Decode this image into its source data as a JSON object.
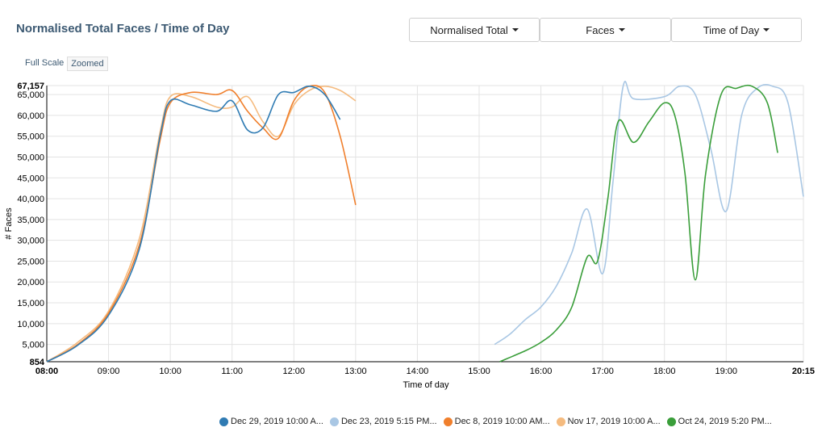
{
  "title": "Normalised Total Faces / Time of Day",
  "controls": {
    "metric": "Normalised Total",
    "measure": "Faces",
    "dimension": "Time of Day"
  },
  "scale_options": {
    "full": "Full Scale",
    "zoomed": "Zoomed",
    "active": "zoomed"
  },
  "colors": {
    "grid": "#e3e3e3",
    "axis": "#000000"
  },
  "chart_data": {
    "type": "line",
    "xlabel": "Time of day",
    "ylabel": "# Faces",
    "xlim": [
      "08:00",
      "20:15"
    ],
    "ylim": [
      854,
      67157
    ],
    "grid": true,
    "legend_position": "bottom",
    "x_ticks": [
      "08:00",
      "09:00",
      "10:00",
      "11:00",
      "12:00",
      "13:00",
      "14:00",
      "15:00",
      "16:00",
      "17:00",
      "18:00",
      "19:00",
      "20:15"
    ],
    "y_ticks": [
      "854",
      "5,000",
      "10,000",
      "15,000",
      "20,000",
      "25,000",
      "30,000",
      "35,000",
      "40,000",
      "45,000",
      "50,000",
      "55,000",
      "60,000",
      "65,000",
      "67,157"
    ],
    "series": [
      {
        "name": "Dec 29, 2019 10:00 A...",
        "color": "#2f7bb3",
        "x": [
          "08:00",
          "08:30",
          "09:00",
          "09:30",
          "09:50",
          "10:00",
          "10:20",
          "10:45",
          "11:00",
          "11:15",
          "11:30",
          "11:45",
          "12:00",
          "12:15",
          "12:30",
          "12:45"
        ],
        "y": [
          854,
          4800,
          12000,
          28000,
          55000,
          63500,
          62500,
          61000,
          63500,
          56500,
          57000,
          65000,
          65500,
          67000,
          65000,
          59000
        ]
      },
      {
        "name": "Dec 23, 2019 5:15 PM...",
        "color": "#a9c7e4",
        "x": [
          "15:15",
          "15:30",
          "15:45",
          "16:00",
          "16:15",
          "16:30",
          "16:45",
          "17:00",
          "17:10",
          "17:20",
          "17:30",
          "18:00",
          "18:15",
          "18:30",
          "18:45",
          "19:00",
          "19:15",
          "19:30",
          "19:45",
          "20:00",
          "20:15"
        ],
        "y": [
          5000,
          7500,
          11000,
          14000,
          19000,
          27000,
          37500,
          22000,
          44000,
          67157,
          64000,
          64500,
          67000,
          65000,
          52000,
          37000,
          60000,
          66500,
          67000,
          63000,
          40500
        ]
      },
      {
        "name": "Dec 8, 2019 10:00 AM...",
        "color": "#f07f2c",
        "x": [
          "08:00",
          "08:30",
          "09:00",
          "09:30",
          "09:50",
          "10:00",
          "10:20",
          "10:45",
          "11:00",
          "11:15",
          "11:30",
          "11:45",
          "12:00",
          "12:15",
          "12:30",
          "12:45",
          "13:00"
        ],
        "y": [
          854,
          5000,
          12500,
          29000,
          54000,
          63000,
          65500,
          65000,
          66000,
          61000,
          57000,
          54500,
          63500,
          67000,
          65500,
          55000,
          38500
        ]
      },
      {
        "name": "Nov 17, 2019 10:00 A...",
        "color": "#f5bb7f",
        "x": [
          "08:00",
          "08:30",
          "09:00",
          "09:30",
          "09:50",
          "10:00",
          "10:20",
          "10:45",
          "11:00",
          "11:15",
          "11:30",
          "11:45",
          "12:00",
          "12:15",
          "12:30",
          "12:45",
          "13:00"
        ],
        "y": [
          854,
          5500,
          13000,
          30500,
          56000,
          64500,
          64500,
          62000,
          62000,
          64500,
          58500,
          55000,
          62500,
          66000,
          67000,
          66000,
          63500
        ]
      },
      {
        "name": "Oct 24, 2019 5:20 PM...",
        "color": "#3a9e3a",
        "x": [
          "15:20",
          "15:45",
          "16:00",
          "16:15",
          "16:30",
          "16:45",
          "16:55",
          "17:05",
          "17:15",
          "17:30",
          "17:45",
          "18:00",
          "18:10",
          "18:20",
          "18:30",
          "18:40",
          "18:55",
          "19:10",
          "19:25",
          "19:40",
          "19:50"
        ],
        "y": [
          854,
          3500,
          5500,
          8500,
          14000,
          26000,
          25000,
          40000,
          58500,
          53500,
          58500,
          63000,
          60000,
          46000,
          20500,
          46000,
          65000,
          66500,
          67000,
          63000,
          51000
        ]
      }
    ]
  }
}
